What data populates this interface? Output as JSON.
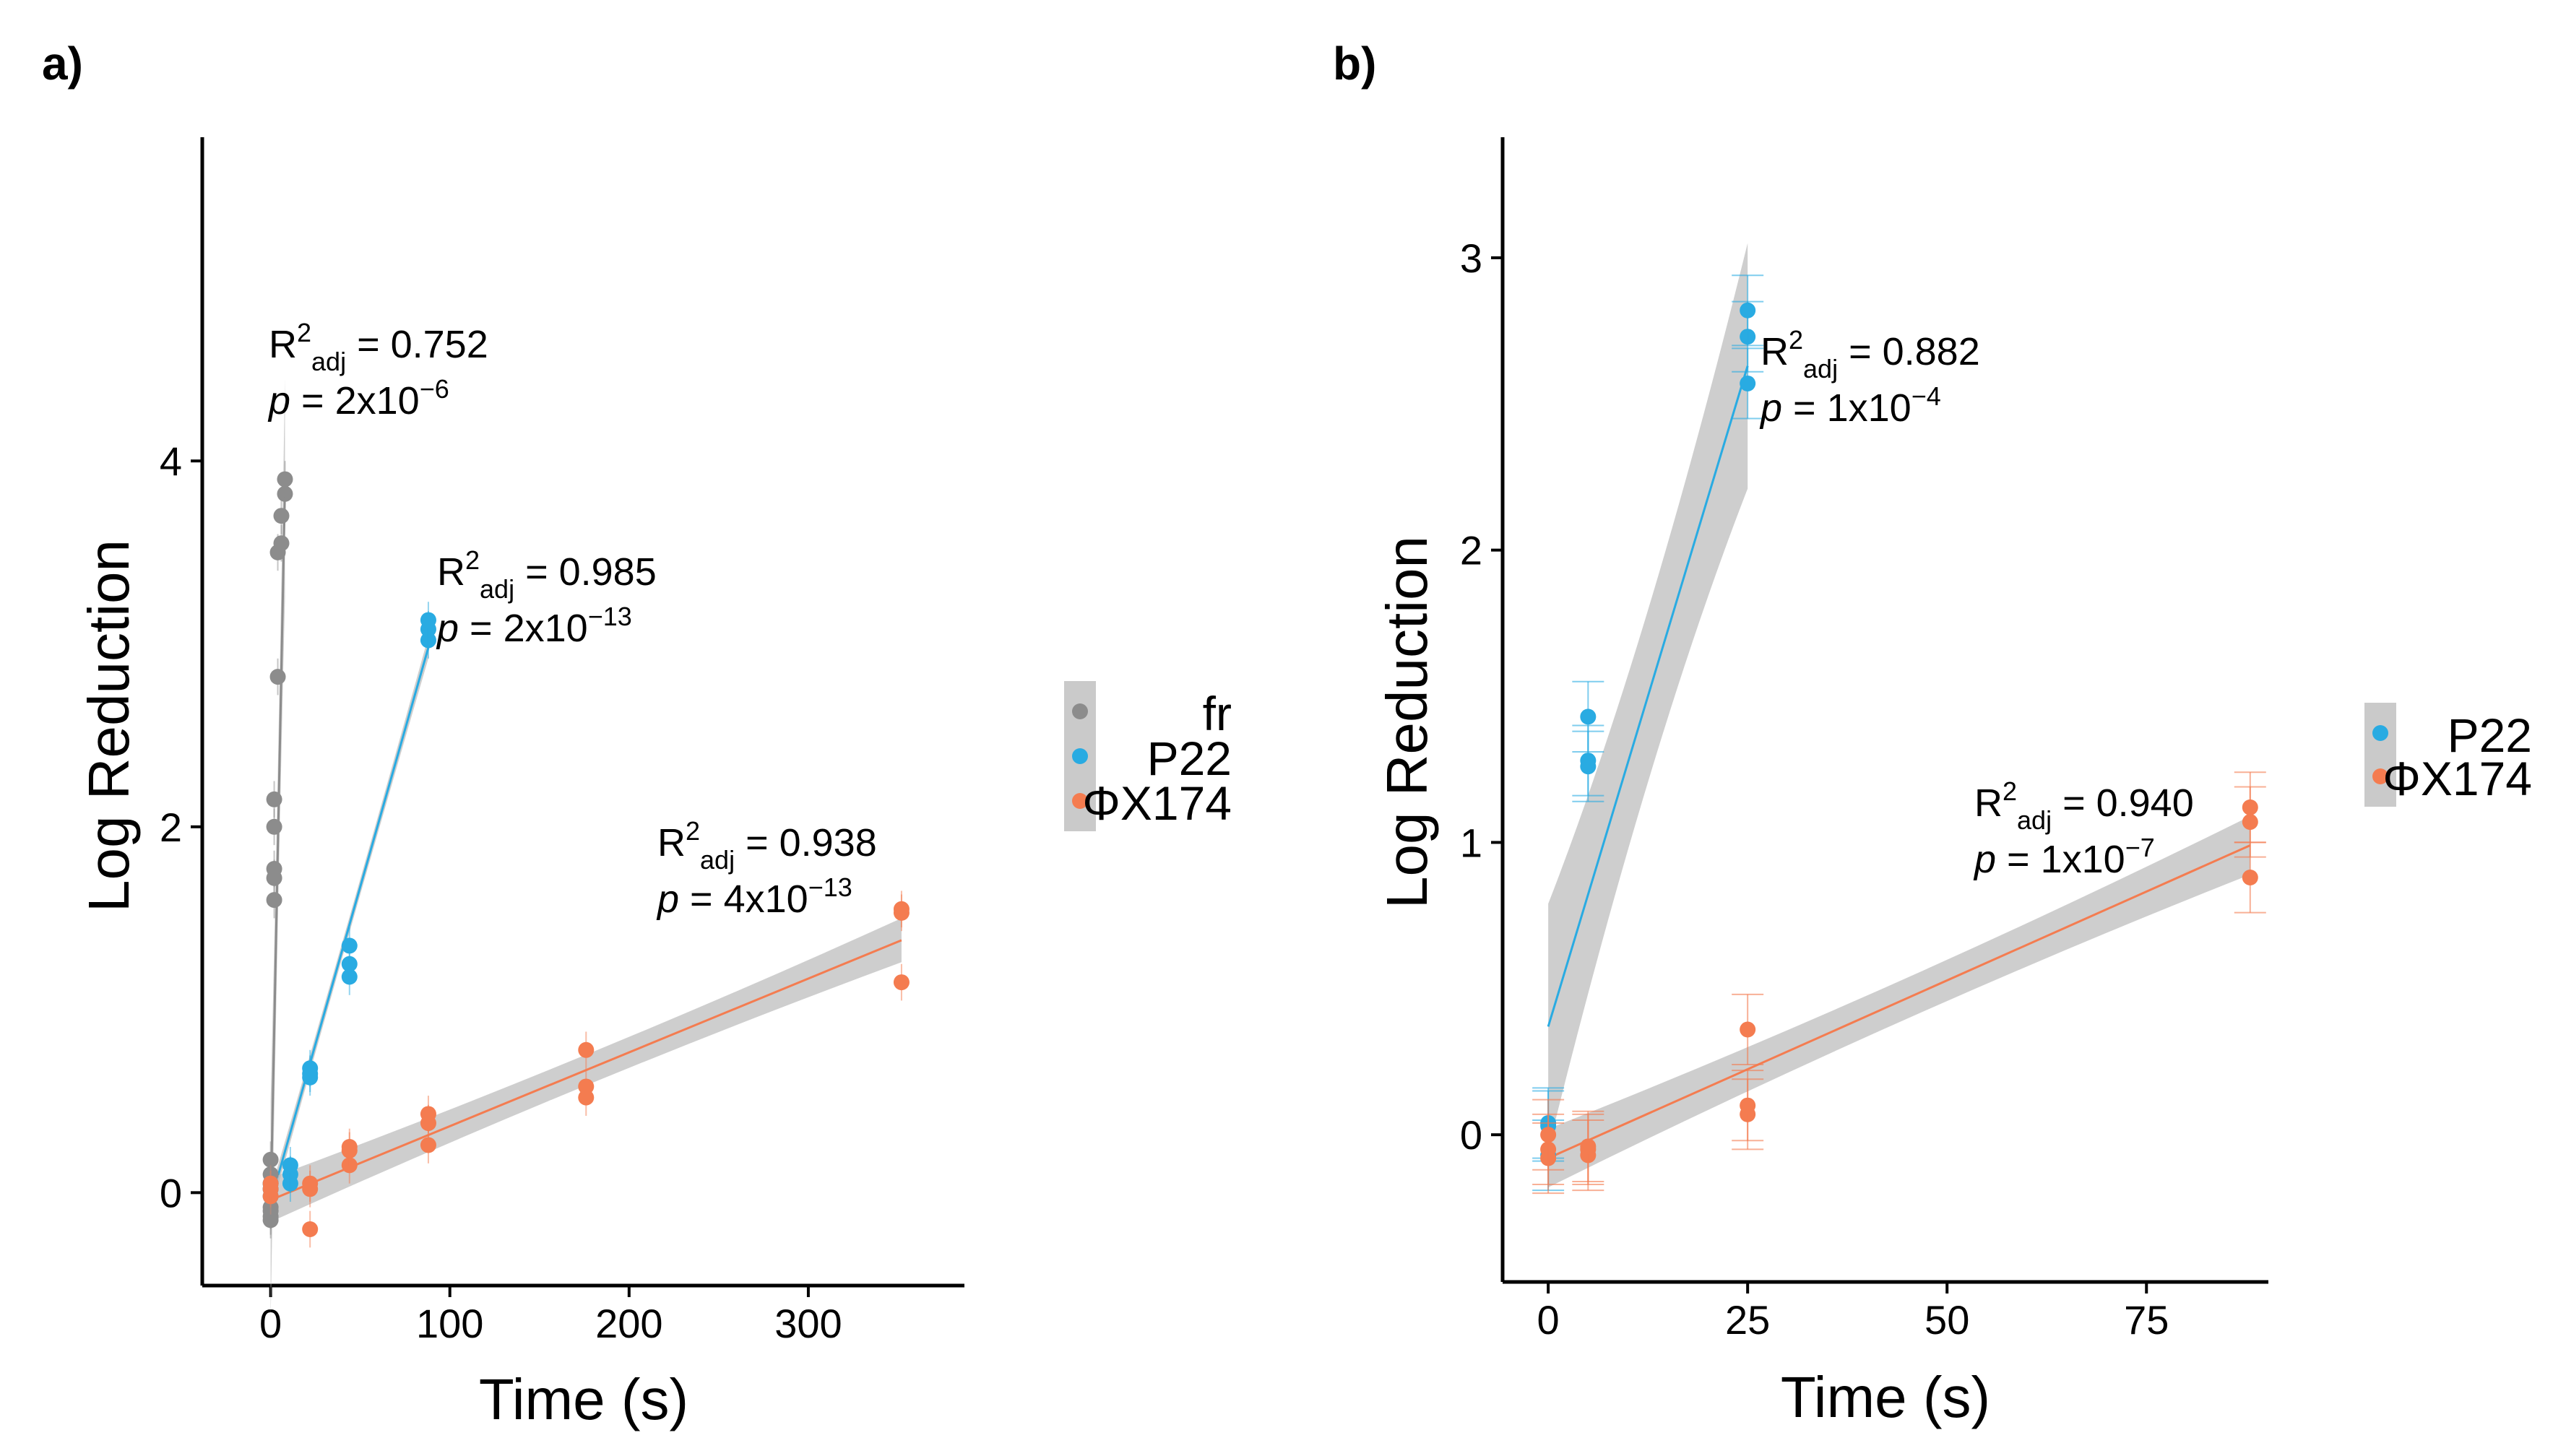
{
  "panels": [
    {
      "id": "a",
      "label": "a)"
    },
    {
      "id": "b",
      "label": "b)"
    }
  ],
  "chart_data": [
    {
      "type": "scatter",
      "panel": "a)",
      "xlabel": "Time (s)",
      "ylabel": "Log Reduction",
      "xlim": [
        -20,
        375
      ],
      "ylim": [
        -0.35,
        5.75
      ],
      "xticks": [
        0,
        100,
        200,
        300
      ],
      "yticks": [
        0,
        2,
        4
      ],
      "legend": [
        "fr",
        "P22",
        "ΦX174"
      ],
      "series": [
        {
          "name": "fr",
          "color": "#8c8c8c",
          "x": [
            0,
            0,
            0,
            0,
            0,
            0,
            0,
            0,
            2,
            2,
            2,
            2,
            2,
            4,
            4,
            6,
            6,
            8,
            8
          ],
          "y": [
            -0.13,
            -0.1,
            -0.08,
            0.02,
            0.1,
            0.18,
            -0.15,
            0.05,
            1.6,
            1.72,
            1.77,
            2.0,
            2.15,
            2.82,
            3.5,
            3.55,
            3.7,
            3.82,
            3.9
          ],
          "fit": {
            "x0": 0,
            "y0": -0.1,
            "x1": 8,
            "y1": 3.85,
            "ci": 0.6
          },
          "annotation": {
            "r2": "0.752",
            "p_mant": "2",
            "p_exp": "−6"
          }
        },
        {
          "name": "P22",
          "color": "#29abe2",
          "x": [
            0,
            0,
            0,
            11,
            11,
            11,
            22,
            22,
            22,
            44,
            44,
            44,
            88,
            88,
            88
          ],
          "y": [
            -0.02,
            0.02,
            0.05,
            0.05,
            0.1,
            0.15,
            0.63,
            0.65,
            0.68,
            1.18,
            1.25,
            1.35,
            3.02,
            3.08,
            3.13
          ],
          "fit": {
            "x0": 0,
            "y0": -0.05,
            "x1": 88,
            "y1": 2.98,
            "ci": 0.06
          },
          "annotation": {
            "r2": "0.985",
            "p_mant": "2",
            "p_exp": "−13"
          }
        },
        {
          "name": "ΦX174",
          "color": "#f47c50",
          "x": [
            0,
            0,
            0,
            22,
            22,
            22,
            44,
            44,
            44,
            88,
            88,
            88,
            176,
            176,
            176,
            352,
            352,
            352
          ],
          "y": [
            -0.02,
            0.02,
            0.05,
            -0.2,
            0.02,
            0.05,
            0.15,
            0.23,
            0.25,
            0.26,
            0.38,
            0.43,
            0.52,
            0.58,
            0.78,
            1.15,
            1.53,
            1.55
          ],
          "fit": {
            "x0": 0,
            "y0": -0.04,
            "x1": 352,
            "y1": 1.38,
            "ci": 0.12
          },
          "annotation": {
            "r2": "0.938",
            "p_mant": "4",
            "p_exp": "−13"
          }
        }
      ]
    },
    {
      "type": "scatter",
      "panel": "b)",
      "xlabel": "Time (s)",
      "ylabel": "Log Reduction",
      "xlim": [
        -3,
        93
      ],
      "ylim": [
        -0.38,
        3.4
      ],
      "xticks": [
        0,
        25,
        50,
        75
      ],
      "yticks": [
        0,
        1,
        2,
        3
      ],
      "legend": [
        "P22",
        "ΦX174"
      ],
      "series": [
        {
          "name": "P22",
          "color": "#29abe2",
          "x": [
            0,
            0,
            0,
            5,
            5,
            5,
            25,
            25,
            25
          ],
          "y": [
            -0.07,
            0.03,
            0.04,
            1.26,
            1.28,
            1.43,
            2.57,
            2.73,
            2.82
          ],
          "fit": {
            "x0": 0,
            "y0": 0.37,
            "x1": 25,
            "y1": 2.63,
            "ci": 0.42
          },
          "annotation": {
            "r2": "0.882",
            "p_mant": "1",
            "p_exp": "−4"
          }
        },
        {
          "name": "ΦX174",
          "color": "#f47c50",
          "x": [
            0,
            0,
            0,
            5,
            5,
            5,
            25,
            25,
            25,
            88,
            88,
            88
          ],
          "y": [
            -0.08,
            -0.05,
            0.0,
            -0.07,
            -0.05,
            -0.04,
            0.07,
            0.1,
            0.36,
            0.88,
            1.07,
            1.12
          ],
          "fit": {
            "x0": 0,
            "y0": -0.08,
            "x1": 88,
            "y1": 0.99,
            "ci": 0.1
          },
          "annotation": {
            "r2": "0.940",
            "p_mant": "1",
            "p_exp": "−7"
          }
        }
      ]
    }
  ]
}
